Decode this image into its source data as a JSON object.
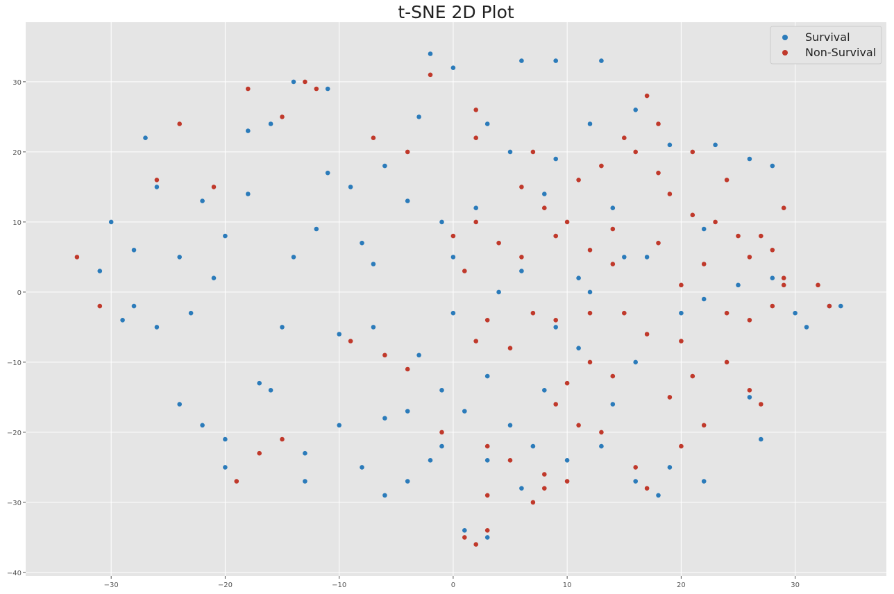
{
  "chart_data": {
    "type": "scatter",
    "title": "t-SNE 2D Plot",
    "xlabel": "",
    "ylabel": "",
    "xlim": [
      -37.5,
      38
    ],
    "ylim": [
      -40.5,
      38.5
    ],
    "x_ticks": [
      -30,
      -20,
      -10,
      0,
      10,
      20,
      30
    ],
    "y_ticks": [
      -40,
      -30,
      -20,
      -10,
      0,
      10,
      20,
      30
    ],
    "x_tick_labels": [
      "−30",
      "−20",
      "−10",
      "0",
      "10",
      "20",
      "30"
    ],
    "y_tick_labels": [
      "−40",
      "−30",
      "−20",
      "−10",
      "0",
      "10",
      "20",
      "30"
    ],
    "grid": true,
    "legend_position": "top-right",
    "series": [
      {
        "name": "Survival",
        "color": "#2b7bba",
        "points": [
          [
            -22,
            13
          ],
          [
            -24,
            5
          ],
          [
            -21,
            2
          ],
          [
            -18,
            14
          ],
          [
            -17,
            -13
          ],
          [
            -16,
            -14
          ],
          [
            -22,
            -19
          ],
          [
            -20,
            -21
          ],
          [
            -13,
            -23
          ],
          [
            -10,
            -19
          ],
          [
            -8,
            -25
          ],
          [
            -4,
            -27
          ],
          [
            -6,
            18
          ],
          [
            -8,
            7
          ],
          [
            -7,
            4
          ],
          [
            -4,
            13
          ],
          [
            -1,
            10
          ],
          [
            2,
            12
          ],
          [
            0,
            5
          ],
          [
            -3,
            25
          ],
          [
            0,
            32
          ],
          [
            9,
            33
          ],
          [
            9,
            19
          ],
          [
            8,
            14
          ],
          [
            12,
            24
          ],
          [
            11,
            2
          ],
          [
            12,
            0
          ],
          [
            16,
            26
          ],
          [
            19,
            21
          ],
          [
            23,
            21
          ],
          [
            26,
            19
          ],
          [
            17,
            5
          ],
          [
            20,
            -3
          ],
          [
            22,
            -1
          ],
          [
            25,
            1
          ],
          [
            30,
            -3
          ],
          [
            33,
            -2
          ],
          [
            31,
            -5
          ],
          [
            19,
            -25
          ],
          [
            16,
            -27
          ],
          [
            18,
            -29
          ],
          [
            22,
            -27
          ],
          [
            1,
            -34
          ],
          [
            3,
            -35
          ],
          [
            -14,
            30
          ],
          [
            -11,
            29
          ],
          [
            -18,
            23
          ],
          [
            -26,
            15
          ],
          [
            -28,
            6
          ],
          [
            -28,
            -2
          ],
          [
            -26,
            -5
          ],
          [
            -23,
            -3
          ],
          [
            -14,
            5
          ],
          [
            -12,
            9
          ],
          [
            -15,
            -5
          ],
          [
            -10,
            -6
          ],
          [
            -7,
            -5
          ],
          [
            -3,
            -9
          ],
          [
            0,
            -3
          ],
          [
            4,
            0
          ],
          [
            6,
            3
          ],
          [
            3,
            -12
          ],
          [
            -1,
            -14
          ],
          [
            1,
            -17
          ],
          [
            5,
            -19
          ],
          [
            7,
            -22
          ],
          [
            3,
            -24
          ],
          [
            -1,
            -22
          ],
          [
            13,
            -22
          ],
          [
            14,
            -16
          ],
          [
            11,
            -8
          ],
          [
            9,
            -5
          ],
          [
            15,
            5
          ],
          [
            14,
            12
          ],
          [
            5,
            20
          ],
          [
            3,
            24
          ],
          [
            -9,
            15
          ],
          [
            -11,
            17
          ],
          [
            -20,
            8
          ],
          [
            -30,
            10
          ],
          [
            -31,
            3
          ],
          [
            -29,
            -4
          ],
          [
            -24,
            -16
          ],
          [
            -20,
            -25
          ],
          [
            -13,
            -27
          ],
          [
            -6,
            -29
          ],
          [
            -2,
            -24
          ],
          [
            6,
            -28
          ],
          [
            10,
            -24
          ],
          [
            26,
            -15
          ],
          [
            27,
            -21
          ],
          [
            28,
            2
          ],
          [
            34,
            -2
          ],
          [
            6,
            33
          ],
          [
            13,
            33
          ],
          [
            -2,
            34
          ],
          [
            -16,
            24
          ],
          [
            -27,
            22
          ],
          [
            -6,
            -18
          ],
          [
            -4,
            -17
          ],
          [
            8,
            -14
          ],
          [
            16,
            -10
          ],
          [
            22,
            9
          ],
          [
            28,
            18
          ]
        ]
      },
      {
        "name": "Non-Survival",
        "color": "#c0392b",
        "points": [
          [
            10,
            -13
          ],
          [
            9,
            -16
          ],
          [
            11,
            -19
          ],
          [
            8,
            -26
          ],
          [
            8,
            -28
          ],
          [
            7,
            -30
          ],
          [
            12,
            -10
          ],
          [
            14,
            -12
          ],
          [
            13,
            -20
          ],
          [
            10,
            -27
          ],
          [
            16,
            -25
          ],
          [
            19,
            -15
          ],
          [
            21,
            -12
          ],
          [
            24,
            -10
          ],
          [
            26,
            -14
          ],
          [
            27,
            -16
          ],
          [
            22,
            -19
          ],
          [
            20,
            -22
          ],
          [
            17,
            -28
          ],
          [
            18,
            17
          ],
          [
            19,
            14
          ],
          [
            21,
            11
          ],
          [
            23,
            10
          ],
          [
            25,
            8
          ],
          [
            27,
            8
          ],
          [
            28,
            6
          ],
          [
            22,
            4
          ],
          [
            24,
            -3
          ],
          [
            26,
            -4
          ],
          [
            28,
            -2
          ],
          [
            29,
            1
          ],
          [
            29,
            2
          ],
          [
            32,
            1
          ],
          [
            33,
            -2
          ],
          [
            16,
            20
          ],
          [
            17,
            28
          ],
          [
            15,
            22
          ],
          [
            13,
            18
          ],
          [
            11,
            16
          ],
          [
            10,
            10
          ],
          [
            9,
            8
          ],
          [
            12,
            6
          ],
          [
            14,
            4
          ],
          [
            6,
            5
          ],
          [
            4,
            7
          ],
          [
            2,
            10
          ],
          [
            0,
            8
          ],
          [
            1,
            3
          ],
          [
            3,
            -4
          ],
          [
            2,
            -7
          ],
          [
            5,
            -8
          ],
          [
            7,
            -3
          ],
          [
            -1,
            -20
          ],
          [
            3,
            -22
          ],
          [
            5,
            -24
          ],
          [
            3,
            -29
          ],
          [
            1,
            -35
          ],
          [
            2,
            -36
          ],
          [
            3,
            -34
          ],
          [
            -33,
            5
          ],
          [
            -31,
            -2
          ],
          [
            -26,
            16
          ],
          [
            -24,
            24
          ],
          [
            -21,
            15
          ],
          [
            -18,
            29
          ],
          [
            -15,
            25
          ],
          [
            -12,
            29
          ],
          [
            -7,
            22
          ],
          [
            -4,
            20
          ],
          [
            2,
            26
          ],
          [
            2,
            22
          ],
          [
            7,
            20
          ],
          [
            -19,
            -27
          ],
          [
            -17,
            -23
          ],
          [
            -15,
            -21
          ],
          [
            -9,
            -7
          ],
          [
            -6,
            -9
          ],
          [
            -4,
            -11
          ],
          [
            -13,
            30
          ],
          [
            -2,
            31
          ],
          [
            9,
            -4
          ],
          [
            12,
            -3
          ],
          [
            15,
            -3
          ],
          [
            17,
            -6
          ],
          [
            20,
            -7
          ],
          [
            18,
            7
          ],
          [
            20,
            1
          ],
          [
            21,
            20
          ],
          [
            18,
            24
          ],
          [
            24,
            16
          ],
          [
            26,
            5
          ],
          [
            29,
            12
          ],
          [
            14,
            9
          ],
          [
            8,
            12
          ],
          [
            6,
            15
          ]
        ]
      }
    ]
  }
}
